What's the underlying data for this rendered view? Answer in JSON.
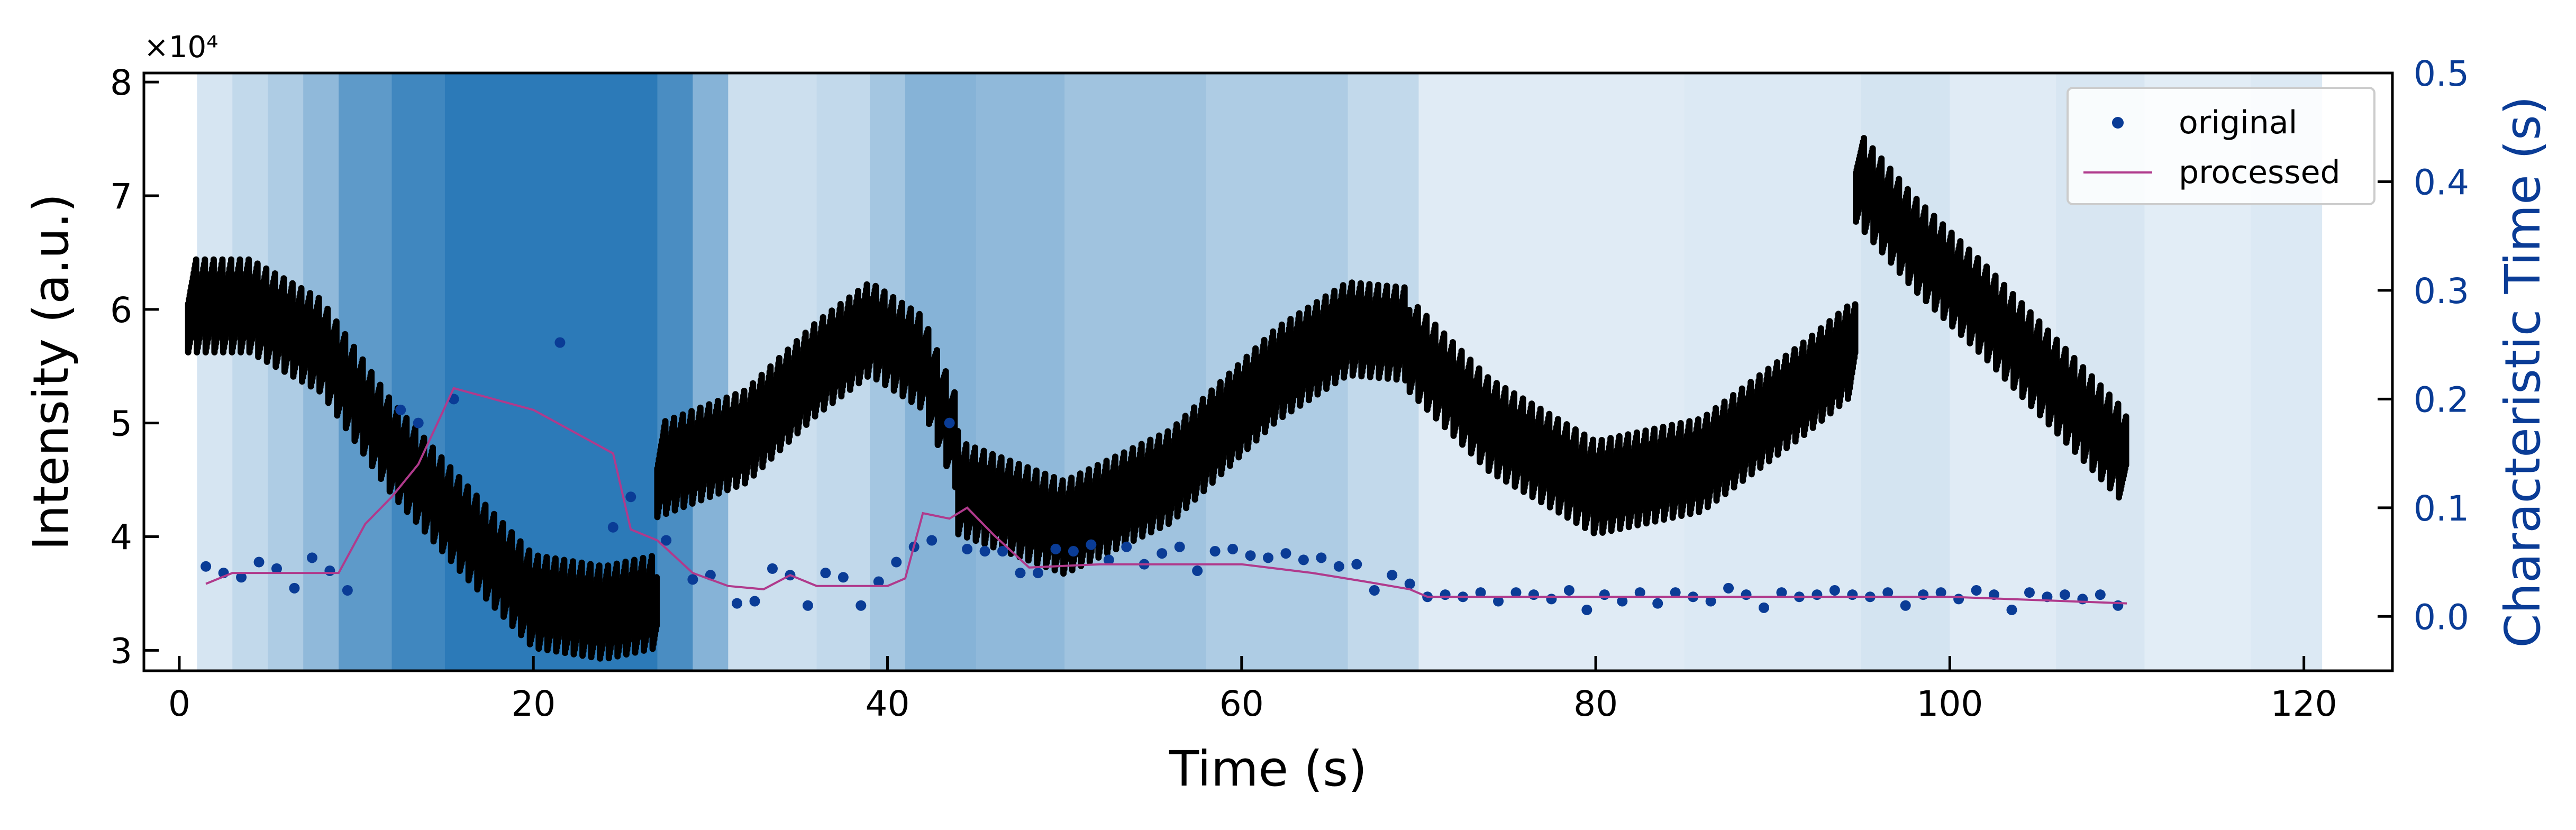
{
  "chart_data": {
    "type": "scatter",
    "x_axis": {
      "label": "Time (s)",
      "range": [
        -2,
        125
      ],
      "ticks": [
        0,
        20,
        40,
        60,
        80,
        100,
        120
      ],
      "tick_labels": [
        "0",
        "20",
        "40",
        "60",
        "80",
        "100",
        "120"
      ]
    },
    "y_axis_left": {
      "label": "Intensity (a.u.)",
      "range": [
        2.82,
        8.08
      ],
      "ticks": [
        3,
        4,
        5,
        6,
        7,
        8
      ],
      "tick_labels": [
        "3",
        "4",
        "5",
        "6",
        "7",
        "8"
      ],
      "multiplier_text": "×10⁴"
    },
    "y_axis_right": {
      "label": "Characteristic Time (s)",
      "range": [
        -0.05,
        0.5
      ],
      "ticks": [
        0.0,
        0.1,
        0.2,
        0.3,
        0.4,
        0.5
      ],
      "tick_labels": [
        "0.0",
        "0.1",
        "0.2",
        "0.3",
        "0.4",
        "0.5"
      ],
      "color": "#0a3c96"
    },
    "background_heatmap": {
      "x_range": [
        1,
        121
      ],
      "colormap": [
        "#f4f8fc",
        "#2c7ab8"
      ],
      "segments": [
        {
          "x": [
            1,
            3
          ],
          "level": 0.15
        },
        {
          "x": [
            3,
            5
          ],
          "level": 0.25
        },
        {
          "x": [
            5,
            7
          ],
          "level": 0.35
        },
        {
          "x": [
            7,
            9
          ],
          "level": 0.5
        },
        {
          "x": [
            9,
            12
          ],
          "level": 0.75
        },
        {
          "x": [
            12,
            15
          ],
          "level": 0.9
        },
        {
          "x": [
            15,
            27
          ],
          "level": 1.0
        },
        {
          "x": [
            27,
            29
          ],
          "level": 0.85
        },
        {
          "x": [
            29,
            31
          ],
          "level": 0.55
        },
        {
          "x": [
            31,
            36
          ],
          "level": 0.2
        },
        {
          "x": [
            36,
            39
          ],
          "level": 0.25
        },
        {
          "x": [
            39,
            41
          ],
          "level": 0.4
        },
        {
          "x": [
            41,
            45
          ],
          "level": 0.55
        },
        {
          "x": [
            45,
            50
          ],
          "level": 0.5
        },
        {
          "x": [
            50,
            58
          ],
          "level": 0.42
        },
        {
          "x": [
            58,
            66
          ],
          "level": 0.35
        },
        {
          "x": [
            66,
            70
          ],
          "level": 0.25
        },
        {
          "x": [
            70,
            85
          ],
          "level": 0.1
        },
        {
          "x": [
            85,
            95
          ],
          "level": 0.12
        },
        {
          "x": [
            95,
            100
          ],
          "level": 0.16
        },
        {
          "x": [
            100,
            106
          ],
          "level": 0.1
        },
        {
          "x": [
            106,
            111
          ],
          "level": 0.14
        },
        {
          "x": [
            111,
            117
          ],
          "level": 0.09
        },
        {
          "x": [
            117,
            121
          ],
          "level": 0.12
        }
      ]
    },
    "intensity_trace": {
      "color": "#000000",
      "description_series": "black",
      "segments": [
        {
          "x": [
            0.5,
            27
          ],
          "center": [
            [
              0.5,
              6.05
            ],
            [
              4,
              6.05
            ],
            [
              8,
              5.7
            ],
            [
              12,
              4.8
            ],
            [
              16,
              4.1
            ],
            [
              20,
              3.45
            ],
            [
              24,
              3.35
            ],
            [
              27,
              3.45
            ]
          ]
        },
        {
          "x": [
            27,
            44
          ],
          "center": [
            [
              27,
              4.6
            ],
            [
              32,
              4.9
            ],
            [
              36,
              5.5
            ],
            [
              39,
              5.85
            ],
            [
              42,
              5.55
            ],
            [
              44,
              4.8
            ]
          ]
        },
        {
          "x": [
            44,
            69.5
          ],
          "center": [
            [
              44,
              4.45
            ],
            [
              50,
              4.1
            ],
            [
              56,
              4.55
            ],
            [
              62,
              5.45
            ],
            [
              66,
              5.85
            ],
            [
              69.5,
              5.8
            ]
          ]
        },
        {
          "x": [
            69.5,
            94.7
          ],
          "center": [
            [
              69.5,
              5.7
            ],
            [
              74,
              5.0
            ],
            [
              80,
              4.45
            ],
            [
              86,
              4.65
            ],
            [
              92,
              5.35
            ],
            [
              94.7,
              5.7
            ]
          ]
        },
        {
          "x": [
            94.7,
            110
          ],
          "center": [
            [
              94.7,
              7.2
            ],
            [
              98,
              6.6
            ],
            [
              102,
              6.0
            ],
            [
              106,
              5.35
            ],
            [
              110,
              4.7
            ]
          ]
        }
      ],
      "band_halfwidth": 0.45
    },
    "series": [
      {
        "name": "original",
        "style": "scatter",
        "color": "#0a3c96",
        "y_axis": "right",
        "x": [
          1.5,
          2.5,
          3.5,
          4.5,
          5.5,
          6.5,
          7.5,
          8.5,
          9.5,
          12.5,
          13.5,
          15.5,
          21.5,
          24.5,
          25.5,
          27.5,
          29.0,
          30.0,
          31.5,
          32.5,
          33.5,
          34.5,
          35.5,
          36.5,
          37.5,
          38.5,
          39.5,
          40.5,
          41.5,
          42.5,
          43.5,
          44.5,
          45.5,
          46.5,
          47.5,
          48.5,
          49.5,
          50.5,
          51.5,
          52.5,
          53.5,
          54.5,
          55.5,
          56.5,
          57.5,
          58.5,
          59.5,
          60.5,
          61.5,
          62.5,
          63.5,
          64.5,
          65.5,
          66.5,
          67.5,
          68.5,
          69.5,
          70.5,
          71.5,
          72.5,
          73.5,
          74.5,
          75.5,
          76.5,
          77.5,
          78.5,
          79.5,
          80.5,
          81.5,
          82.5,
          83.5,
          84.5,
          85.5,
          86.5,
          87.5,
          88.5,
          89.5,
          90.5,
          91.5,
          92.5,
          93.5,
          94.5,
          95.5,
          96.5,
          97.5,
          98.5,
          99.5,
          100.5,
          101.5,
          102.5,
          103.5,
          104.5,
          105.5,
          106.5,
          107.5,
          108.5,
          109.5
        ],
        "y": [
          0.046,
          0.04,
          0.036,
          0.05,
          0.044,
          0.026,
          0.054,
          0.042,
          0.024,
          0.19,
          0.178,
          0.2,
          0.252,
          0.082,
          0.11,
          0.07,
          0.034,
          0.038,
          0.012,
          0.014,
          0.044,
          0.038,
          0.01,
          0.04,
          0.036,
          0.01,
          0.032,
          0.05,
          0.064,
          0.07,
          0.178,
          0.062,
          0.06,
          0.06,
          0.04,
          0.04,
          0.062,
          0.06,
          0.066,
          0.052,
          0.064,
          0.048,
          0.058,
          0.064,
          0.042,
          0.06,
          0.062,
          0.056,
          0.054,
          0.058,
          0.052,
          0.054,
          0.046,
          0.048,
          0.024,
          0.038,
          0.03,
          0.018,
          0.02,
          0.018,
          0.022,
          0.014,
          0.022,
          0.02,
          0.016,
          0.024,
          0.006,
          0.02,
          0.014,
          0.022,
          0.012,
          0.022,
          0.018,
          0.014,
          0.026,
          0.02,
          0.008,
          0.022,
          0.018,
          0.02,
          0.024,
          0.02,
          0.018,
          0.022,
          0.01,
          0.02,
          0.022,
          0.016,
          0.024,
          0.02,
          0.006,
          0.022,
          0.018,
          0.02,
          0.016,
          0.02,
          0.01
        ]
      },
      {
        "name": "processed",
        "style": "line",
        "color": "#b03a8c",
        "y_axis": "right",
        "x": [
          1.5,
          3,
          6,
          9,
          10.5,
          12,
          13.5,
          15.5,
          20,
          24.5,
          25.5,
          27,
          29,
          31,
          33,
          34.5,
          36,
          38,
          40,
          41,
          42,
          43.5,
          44.5,
          46,
          48,
          52,
          56,
          60,
          64,
          67,
          69.5,
          70.5,
          80,
          90,
          100,
          110
        ],
        "y": [
          0.03,
          0.04,
          0.04,
          0.04,
          0.085,
          0.11,
          0.14,
          0.21,
          0.19,
          0.15,
          0.08,
          0.07,
          0.04,
          0.028,
          0.025,
          0.038,
          0.028,
          0.028,
          0.028,
          0.035,
          0.095,
          0.09,
          0.1,
          0.075,
          0.045,
          0.048,
          0.048,
          0.048,
          0.04,
          0.032,
          0.025,
          0.018,
          0.018,
          0.018,
          0.018,
          0.012
        ]
      }
    ],
    "legend": {
      "position": "top-right",
      "entries": [
        {
          "label": "original",
          "marker": "dot",
          "color": "#0a3c96"
        },
        {
          "label": "processed",
          "marker": "line",
          "color": "#b03a8c"
        }
      ]
    },
    "grid": false
  }
}
